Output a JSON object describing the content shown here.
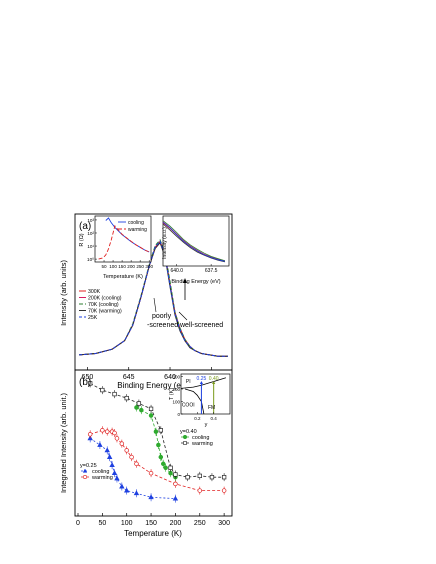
{
  "figure": {
    "panel_a_label": "(a)",
    "panel_b_label": "(b)"
  },
  "chart_data": [
    {
      "id": "panel_a",
      "type": "line",
      "xlabel": "Binding Energy (eV)",
      "ylabel": "Intensity (arb. units)",
      "xlim": [
        651.5,
        632.5
      ],
      "x_reversed": true,
      "xticks": [
        650,
        645,
        640,
        635
      ],
      "legend_position": "lower-left",
      "annotations": [
        {
          "text": "poorly",
          "text2": "-screened"
        },
        {
          "text": "well-screened"
        }
      ],
      "x": [
        651,
        649,
        647,
        645.5,
        644.5,
        643.5,
        642.5,
        641.8,
        641.2,
        640.6,
        640.0,
        639.4,
        638.8,
        638.2,
        637.6,
        637.0,
        636.2,
        635.2,
        634.2,
        633.0
      ],
      "series": [
        {
          "name": "300K",
          "color": "#e02020",
          "dash": "",
          "values": [
            0.05,
            0.06,
            0.09,
            0.15,
            0.26,
            0.46,
            0.68,
            0.8,
            0.84,
            0.75,
            0.55,
            0.35,
            0.24,
            0.16,
            0.11,
            0.08,
            0.06,
            0.05,
            0.04,
            0.04
          ]
        },
        {
          "name": "200K (cooling)",
          "color": "#d81b60",
          "dash": "",
          "values": [
            0.05,
            0.06,
            0.09,
            0.15,
            0.26,
            0.46,
            0.68,
            0.81,
            0.85,
            0.76,
            0.55,
            0.34,
            0.23,
            0.15,
            0.11,
            0.08,
            0.06,
            0.05,
            0.04,
            0.04
          ]
        },
        {
          "name": "70K  (cooling)",
          "color": "#2e7d32",
          "dash": "4,2",
          "values": [
            0.05,
            0.06,
            0.09,
            0.15,
            0.27,
            0.47,
            0.69,
            0.82,
            0.86,
            0.77,
            0.57,
            0.35,
            0.24,
            0.16,
            0.11,
            0.08,
            0.06,
            0.05,
            0.04,
            0.04
          ]
        },
        {
          "name": "70K  (warming)",
          "color": "#333333",
          "dash": "",
          "values": [
            0.05,
            0.06,
            0.09,
            0.15,
            0.26,
            0.46,
            0.68,
            0.8,
            0.84,
            0.74,
            0.53,
            0.33,
            0.22,
            0.15,
            0.1,
            0.08,
            0.06,
            0.05,
            0.04,
            0.04
          ]
        },
        {
          "name": "25K",
          "color": "#1e40e0",
          "dash": "3,2",
          "values": [
            0.05,
            0.06,
            0.09,
            0.15,
            0.26,
            0.46,
            0.68,
            0.81,
            0.85,
            0.75,
            0.54,
            0.34,
            0.23,
            0.15,
            0.11,
            0.08,
            0.06,
            0.05,
            0.04,
            0.04
          ]
        }
      ]
    },
    {
      "id": "panel_a_inset_resistivity",
      "type": "line",
      "xlabel": "Temperature (K)",
      "ylabel": "R (Ω)",
      "xticks": [
        50,
        100,
        150,
        200,
        250,
        300
      ],
      "yticks_labels": [
        "10³",
        "10²",
        "10¹",
        "10⁰"
      ],
      "xlim": [
        0,
        310
      ],
      "log_y": true,
      "ylim": [
        0.6,
        2000
      ],
      "legend_position": "top-right",
      "x": [
        20,
        40,
        50,
        60,
        75,
        90,
        110,
        130,
        150,
        175,
        200,
        225,
        250,
        275,
        300
      ],
      "series": [
        {
          "name": "cooling",
          "color": "#1e40e0",
          "dash": "",
          "values": [
            null,
            null,
            null,
            900,
            1400,
            600,
            270,
            140,
            75,
            40,
            22,
            13,
            8,
            5,
            3.5
          ]
        },
        {
          "name": "warming",
          "color": "#e02020",
          "dash": "4,2",
          "values": [
            1,
            1.2,
            1.5,
            2.1,
            6,
            30,
            350,
            160,
            80,
            42,
            23,
            13,
            8,
            5,
            3.5
          ]
        }
      ]
    },
    {
      "id": "panel_a_inset_zoom",
      "type": "line",
      "xlabel": "Binding Energy (eV)",
      "ylabel": "Intensity (a.u.)",
      "xticks": [
        640.0,
        637.5
      ],
      "xtick_labels": [
        "640.0",
        "637.5"
      ],
      "xlim": [
        641,
        636.2
      ],
      "x_reversed": true,
      "x": [
        641.0,
        640.5,
        640.0,
        639.5,
        639.0,
        638.5,
        638.0,
        637.5,
        637.0,
        636.5
      ],
      "series": [
        {
          "color": "#e02020",
          "values": [
            0.86,
            0.76,
            0.64,
            0.52,
            0.42,
            0.34,
            0.27,
            0.22,
            0.18,
            0.15
          ]
        },
        {
          "color": "#d81b60",
          "values": [
            0.88,
            0.77,
            0.65,
            0.53,
            0.43,
            0.35,
            0.28,
            0.23,
            0.19,
            0.16
          ]
        },
        {
          "color": "#2e7d32",
          "values": [
            0.9,
            0.8,
            0.68,
            0.55,
            0.45,
            0.37,
            0.3,
            0.24,
            0.2,
            0.16
          ]
        },
        {
          "color": "#333333",
          "values": [
            0.84,
            0.73,
            0.61,
            0.5,
            0.4,
            0.32,
            0.26,
            0.21,
            0.17,
            0.14
          ]
        },
        {
          "color": "#1e40e0",
          "values": [
            0.87,
            0.77,
            0.64,
            0.52,
            0.42,
            0.34,
            0.27,
            0.22,
            0.18,
            0.15
          ]
        }
      ]
    },
    {
      "id": "panel_b",
      "type": "scatter",
      "xlabel": "Temperature (K)",
      "ylabel": "Integrated Intensity (arb. unit.)",
      "xlim": [
        0,
        310
      ],
      "xticks": [
        0,
        50,
        100,
        150,
        200,
        250,
        300
      ],
      "ylim": [
        0,
        1
      ],
      "legend_groups": [
        {
          "title": "y=0.25",
          "position": "lower-left"
        },
        {
          "title": "y=0.40",
          "position": "right"
        }
      ],
      "series": [
        {
          "name": "cooling",
          "group": "y=0.25",
          "color": "#1e40e0",
          "marker": "triangle",
          "filled": true,
          "dash": "2,2",
          "x": [
            25,
            45,
            60,
            65,
            70,
            75,
            80,
            90,
            100,
            120,
            150,
            200
          ],
          "y": [
            0.52,
            0.47,
            0.43,
            0.38,
            0.32,
            0.26,
            0.22,
            0.16,
            0.13,
            0.11,
            0.08,
            0.07
          ]
        },
        {
          "name": "warming",
          "group": "y=0.25",
          "color": "#e02020",
          "marker": "circle",
          "filled": false,
          "dash": "3,2",
          "x": [
            25,
            50,
            60,
            70,
            75,
            80,
            90,
            100,
            110,
            120,
            150,
            200,
            250,
            300
          ],
          "y": [
            0.55,
            0.58,
            0.57,
            0.57,
            0.56,
            0.52,
            0.48,
            0.43,
            0.38,
            0.33,
            0.26,
            0.18,
            0.13,
            0.13
          ]
        },
        {
          "name": "cooling",
          "group": "y=0.40",
          "color": "#2eaa2e",
          "marker": "circle",
          "filled": true,
          "dash": "3,2",
          "x": [
            120,
            130,
            150,
            160,
            165,
            170,
            175,
            180,
            190,
            200
          ],
          "y": [
            0.75,
            0.73,
            0.69,
            0.57,
            0.47,
            0.38,
            0.33,
            0.3,
            0.26,
            0.23
          ]
        },
        {
          "name": "warming",
          "group": "y=0.40",
          "color": "#222222",
          "marker": "square",
          "filled": false,
          "dash": "3,2",
          "x": [
            25,
            50,
            75,
            100,
            125,
            150,
            170,
            190,
            200,
            225,
            250,
            275,
            300
          ],
          "y": [
            0.93,
            0.88,
            0.85,
            0.82,
            0.78,
            0.74,
            0.58,
            0.3,
            0.25,
            0.23,
            0.24,
            0.23,
            0.23
          ]
        }
      ]
    },
    {
      "id": "panel_b_inset_phase",
      "type": "line",
      "xlabel": "y",
      "ylabel": "T (K)",
      "xticks": [
        0.2,
        0.4
      ],
      "yticks": [
        0,
        100,
        200,
        300
      ],
      "regions": [
        "PI",
        "COOI",
        "FM"
      ],
      "markers": [
        {
          "label": "0.25",
          "color": "#1e40e0",
          "x": 0.25
        },
        {
          "label": "0.40",
          "color": "#7a9a1a",
          "x": 0.4
        }
      ],
      "xlim": [
        0,
        0.6
      ],
      "ylim": [
        0,
        320
      ],
      "lines": [
        {
          "x": [
            0.0,
            0.15,
            0.25,
            0.35,
            0.45,
            0.55
          ],
          "y": [
            205,
            215,
            230,
            250,
            270,
            290
          ]
        },
        {
          "x": [
            0.05,
            0.15,
            0.2,
            0.25,
            0.28
          ],
          "y": [
            200,
            180,
            150,
            100,
            0
          ]
        }
      ]
    }
  ]
}
